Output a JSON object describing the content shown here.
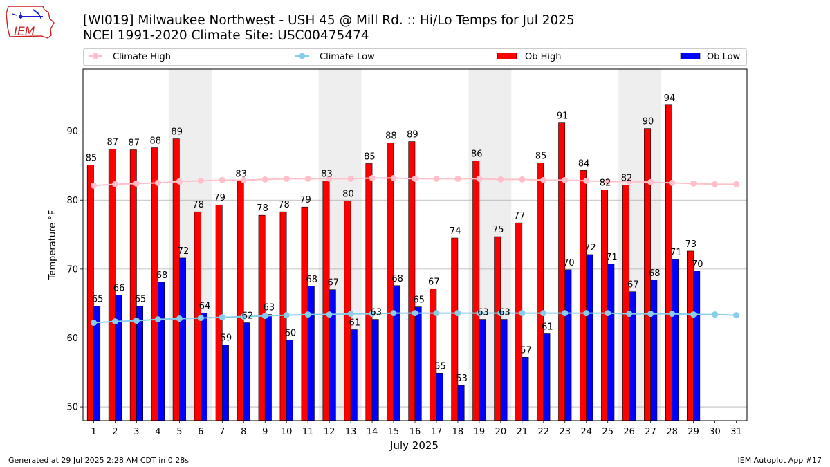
{
  "header": {
    "logo_text": "IEM",
    "title_line1": "[WI019] Milwaukee Northwest - USH 45 @ Mill Rd. :: Hi/Lo Temps for Jul 2025",
    "title_line2": "NCEI 1991-2020 Climate Site: USC00475474"
  },
  "footer": {
    "generated": "Generated at 29 Jul 2025 2:28 AM CDT in 0.28s",
    "app": "IEM Autoplot App #17"
  },
  "colors": {
    "ob_high": "#ff0000",
    "ob_low": "#0000ff",
    "climate_high": "#ffc0cb",
    "climate_low": "#87ceeb",
    "weekend_shade": "#eeeeee",
    "grid": "#b0b0b0"
  },
  "chart_data": {
    "type": "bar",
    "title": "[WI019] Milwaukee Northwest - USH 45 @ Mill Rd. :: Hi/Lo Temps for Jul 2025",
    "subtitle": "NCEI 1991-2020 Climate Site: USC00475474",
    "xlabel": "July 2025",
    "ylabel": "Temperature °F",
    "ylim": [
      48,
      99
    ],
    "xlim": [
      0.5,
      31.5
    ],
    "yticks": [
      50,
      60,
      70,
      80,
      90
    ],
    "categories": [
      "1",
      "2",
      "3",
      "4",
      "5",
      "6",
      "7",
      "8",
      "9",
      "10",
      "11",
      "12",
      "13",
      "14",
      "15",
      "16",
      "17",
      "18",
      "19",
      "20",
      "21",
      "22",
      "23",
      "24",
      "25",
      "26",
      "27",
      "28",
      "29",
      "30",
      "31"
    ],
    "grid": "horizontal",
    "legend_position": "top",
    "shaded_days": [
      [
        5,
        6
      ],
      [
        12,
        13
      ],
      [
        19,
        20
      ],
      [
        26,
        27
      ]
    ],
    "series": [
      {
        "name": "Ob High",
        "kind": "bar",
        "values": [
          85.1,
          87.4,
          87.3,
          87.6,
          88.9,
          78.3,
          79.3,
          82.8,
          77.8,
          78.3,
          79.0,
          82.8,
          79.9,
          85.3,
          88.3,
          88.5,
          67.1,
          74.5,
          85.7,
          74.7,
          76.7,
          85.4,
          91.2,
          84.3,
          81.5,
          82.2,
          90.4,
          93.8,
          72.6,
          null,
          null
        ],
        "labels": [
          "85",
          "87",
          "87",
          "88",
          "89",
          "78",
          "79",
          "83",
          "78",
          "78",
          "79",
          "83",
          "80",
          "85",
          "88",
          "89",
          "67",
          "74",
          "86",
          "75",
          "77",
          "85",
          "91",
          "84",
          "82",
          "82",
          "90",
          "94",
          "73",
          "",
          ""
        ]
      },
      {
        "name": "Ob Low",
        "kind": "bar",
        "values": [
          64.6,
          66.2,
          64.6,
          68.1,
          71.6,
          63.6,
          59.0,
          62.2,
          63.4,
          59.7,
          67.5,
          67.0,
          61.2,
          62.7,
          67.6,
          64.5,
          54.9,
          53.1,
          62.7,
          62.7,
          57.2,
          60.6,
          69.9,
          72.1,
          70.7,
          66.7,
          68.4,
          71.4,
          69.7,
          null,
          null
        ],
        "labels": [
          "65",
          "66",
          "65",
          "68",
          "72",
          "64",
          "59",
          "62",
          "63",
          "60",
          "68",
          "67",
          "61",
          "63",
          "68",
          "65",
          "55",
          "53",
          "63",
          "63",
          "57",
          "61",
          "70",
          "72",
          "71",
          "67",
          "68",
          "71",
          "70",
          "",
          ""
        ]
      },
      {
        "name": "Climate High",
        "kind": "line",
        "values": [
          82.1,
          82.3,
          82.4,
          82.5,
          82.7,
          82.8,
          82.9,
          82.9,
          83.0,
          83.1,
          83.1,
          83.1,
          83.1,
          83.2,
          83.2,
          83.1,
          83.1,
          83.1,
          83.1,
          83.0,
          83.0,
          82.9,
          82.9,
          82.8,
          82.7,
          82.7,
          82.6,
          82.5,
          82.4,
          82.3,
          82.3
        ]
      },
      {
        "name": "Climate Low",
        "kind": "line",
        "values": [
          62.2,
          62.4,
          62.5,
          62.7,
          62.8,
          62.9,
          63.0,
          63.1,
          63.2,
          63.3,
          63.4,
          63.4,
          63.5,
          63.5,
          63.6,
          63.6,
          63.6,
          63.6,
          63.6,
          63.6,
          63.6,
          63.6,
          63.6,
          63.6,
          63.6,
          63.5,
          63.5,
          63.5,
          63.4,
          63.4,
          63.3
        ]
      }
    ]
  }
}
